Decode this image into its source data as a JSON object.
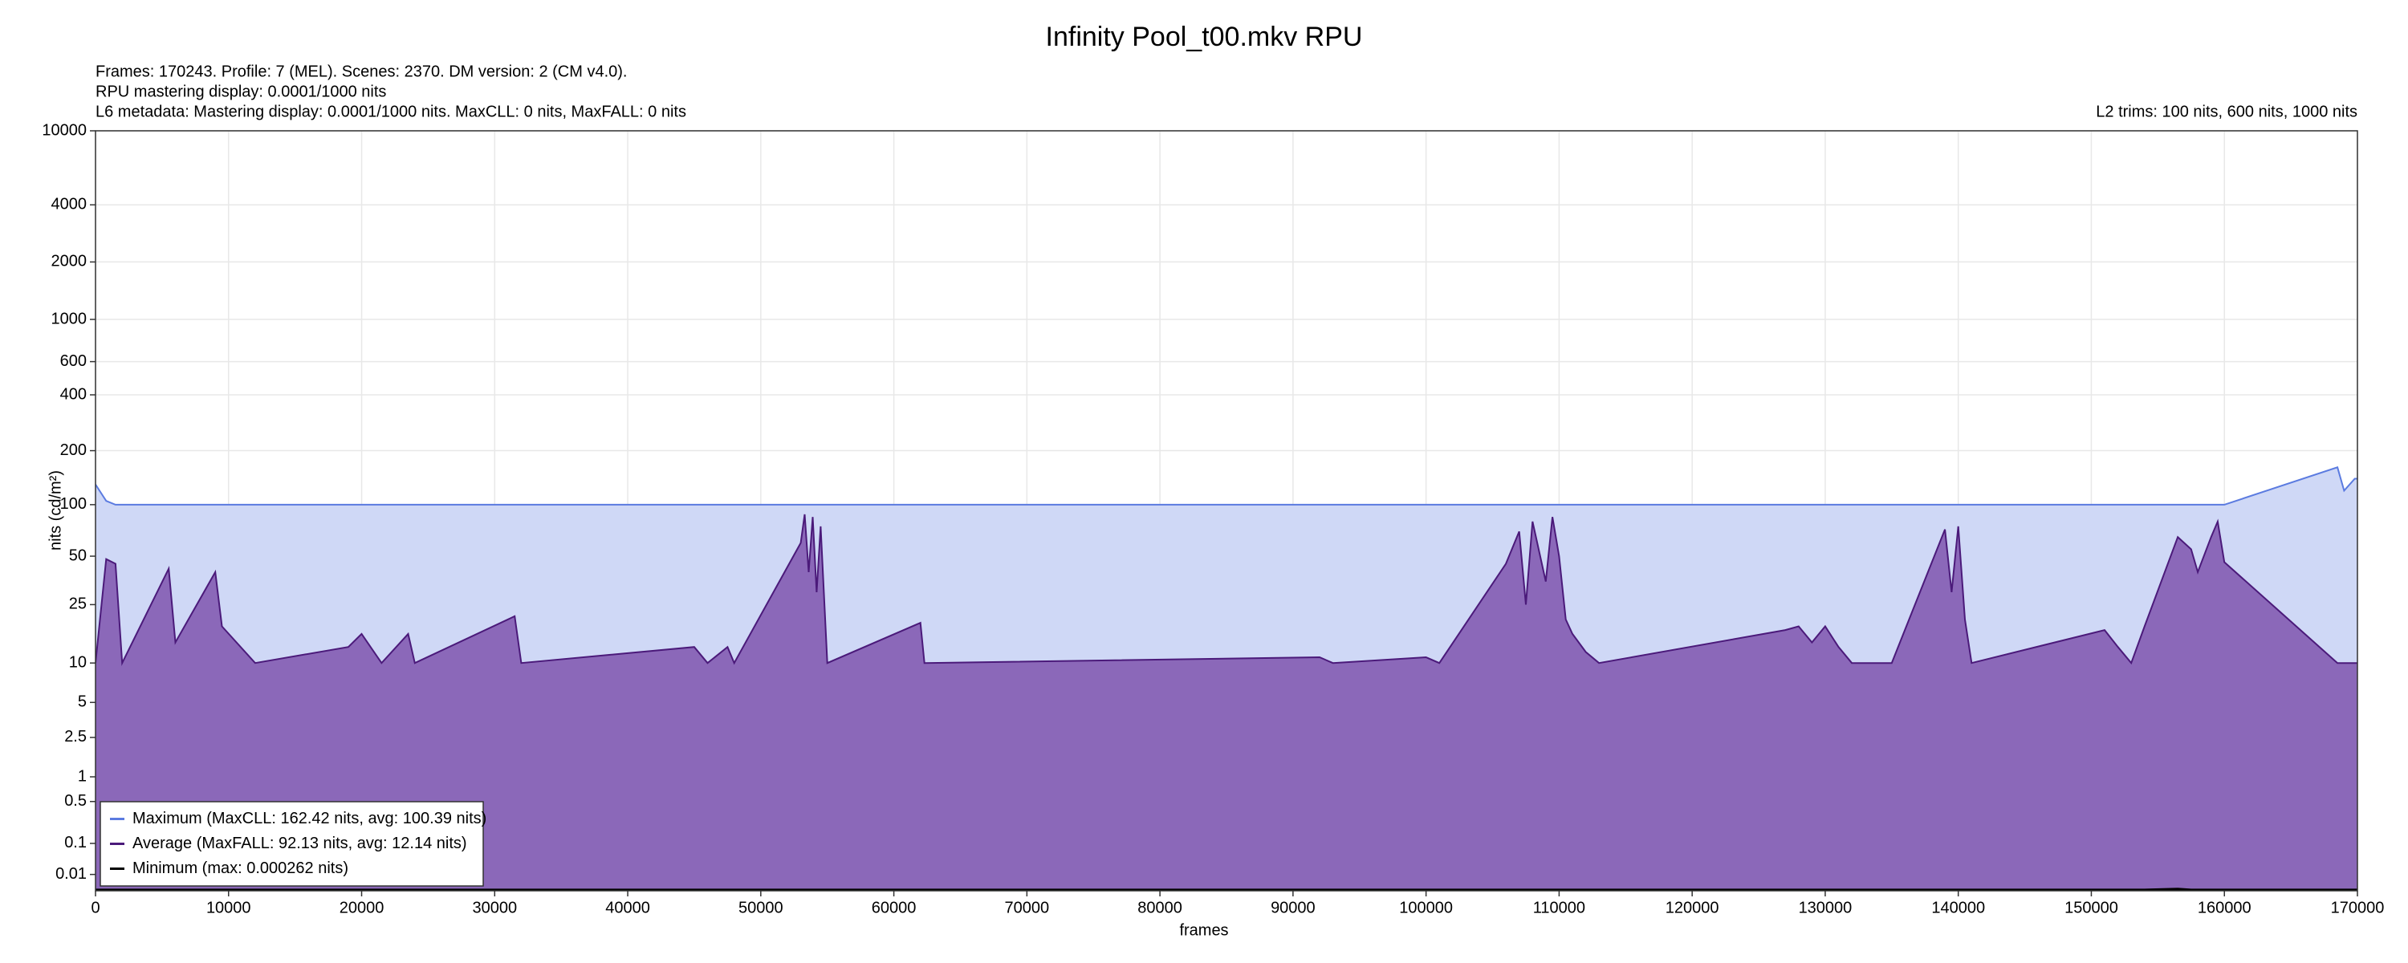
{
  "chart_data": {
    "type": "line",
    "title": "Infinity Pool_t00.mkv RPU",
    "info": [
      "Frames: 170243. Profile: 7 (MEL). Scenes: 2370. DM version: 2 (CM v4.0).",
      "RPU mastering display: 0.0001/1000 nits",
      "L6 metadata: Mastering display: 0.0001/1000 nits. MaxCLL: 0 nits, MaxFALL: 0 nits"
    ],
    "l2_trims": "L2 trims: 100 nits, 600 nits, 1000 nits",
    "xlabel": "frames",
    "ylabel": "nits (cd/m²)",
    "y_scale": "pq",
    "grid": true,
    "legend": "lower left",
    "fill": true,
    "xlim": [
      0,
      170000
    ],
    "xticks": [
      0,
      10000,
      20000,
      30000,
      40000,
      50000,
      60000,
      70000,
      80000,
      90000,
      100000,
      110000,
      120000,
      130000,
      140000,
      150000,
      160000,
      170000
    ],
    "ylim": [
      0,
      10000
    ],
    "yticks": [
      0.01,
      0.1,
      0.5,
      1,
      2.5,
      5,
      10,
      25,
      50,
      100,
      200,
      400,
      600,
      1000,
      2000,
      4000,
      10000
    ],
    "x": [
      0,
      800,
      1500,
      2000,
      5500,
      6000,
      9000,
      9500,
      12000,
      19000,
      20000,
      21500,
      23500,
      24000,
      31500,
      32000,
      45000,
      46000,
      47500,
      48000,
      53000,
      53300,
      53600,
      53900,
      54200,
      54500,
      55000,
      62000,
      62300,
      92000,
      93000,
      100000,
      101000,
      106000,
      107000,
      107500,
      108000,
      109000,
      109500,
      110000,
      110500,
      111000,
      112000,
      113000,
      127000,
      128000,
      129000,
      130000,
      131000,
      132000,
      135000,
      139000,
      139500,
      140000,
      140500,
      141000,
      151000,
      152000,
      153000,
      154000,
      156500,
      157500,
      158000,
      159000,
      159500,
      160000,
      168500,
      169000,
      169800,
      170243
    ],
    "series": [
      {
        "name": "Maximum (MaxCLL: 162.42 nits, avg: 100.39 nits)",
        "color": "#5b7be0",
        "fill_color": "#cfd8f6",
        "values": [
          130,
          105,
          100,
          100,
          100,
          100,
          100,
          100,
          100,
          100,
          100,
          100,
          100,
          100,
          100,
          100,
          100,
          100,
          100,
          100,
          100,
          100,
          100,
          100,
          100,
          100,
          100,
          100,
          100,
          100,
          100,
          100,
          100,
          100,
          100,
          100,
          100,
          100,
          100,
          100,
          100,
          100,
          100,
          100,
          100,
          100,
          100,
          100,
          100,
          100,
          100,
          100,
          100,
          100,
          100,
          100,
          100,
          100,
          100,
          100,
          100,
          100,
          100,
          100,
          100,
          100,
          162,
          120,
          140,
          140
        ]
      },
      {
        "name": "Average (MaxFALL: 92.13 nits, avg: 12.14 nits)",
        "color": "#4b1a7a",
        "fill_color": "#8b68b9",
        "values": [
          10,
          48,
          45,
          10,
          42,
          14,
          40,
          18,
          10,
          13,
          16,
          10,
          16,
          10,
          21,
          10,
          13,
          10,
          13,
          10,
          60,
          88,
          40,
          85,
          30,
          75,
          10,
          19,
          10,
          11,
          10,
          11,
          10,
          45,
          70,
          25,
          80,
          35,
          85,
          50,
          20,
          16,
          12,
          10,
          17,
          18,
          14,
          18,
          13,
          10,
          10,
          72,
          30,
          75,
          20,
          10,
          17,
          13,
          10,
          18,
          65,
          55,
          40,
          65,
          80,
          46,
          10,
          10,
          10,
          10
        ]
      },
      {
        "name": "Minimum (max: 0.000262 nits)",
        "color": "#000000",
        "fill_color": "#000000",
        "values": [
          0.0001,
          0.0001,
          0.0001,
          0.0001,
          0.0001,
          0.0001,
          0.0001,
          0.0001,
          0.0001,
          0.0001,
          0.0001,
          0.0001,
          0.0001,
          0.0001,
          0.0001,
          0.0001,
          0.0001,
          0.0001,
          0.0001,
          0.0001,
          0.0001,
          0.0001,
          0.0001,
          0.0001,
          0.0001,
          0.0001,
          0.0001,
          0.0001,
          0.0001,
          0.0001,
          0.0001,
          0.0001,
          0.0001,
          0.0001,
          0.0001,
          0.0001,
          0.0001,
          0.0001,
          0.0001,
          0.0001,
          0.0001,
          0.0001,
          0.0001,
          0.0001,
          0.0001,
          0.0001,
          0.0001,
          0.0001,
          0.0001,
          0.0001,
          0.0001,
          0.0001,
          0.0001,
          0.0001,
          0.0001,
          0.0001,
          0.0001,
          0.0001,
          0.0001,
          0.0001,
          0.000262,
          0.0001,
          0.0001,
          0.0001,
          0.0001,
          0.0001,
          0.0001,
          0.0001,
          0.0001,
          0.0001
        ]
      }
    ]
  }
}
